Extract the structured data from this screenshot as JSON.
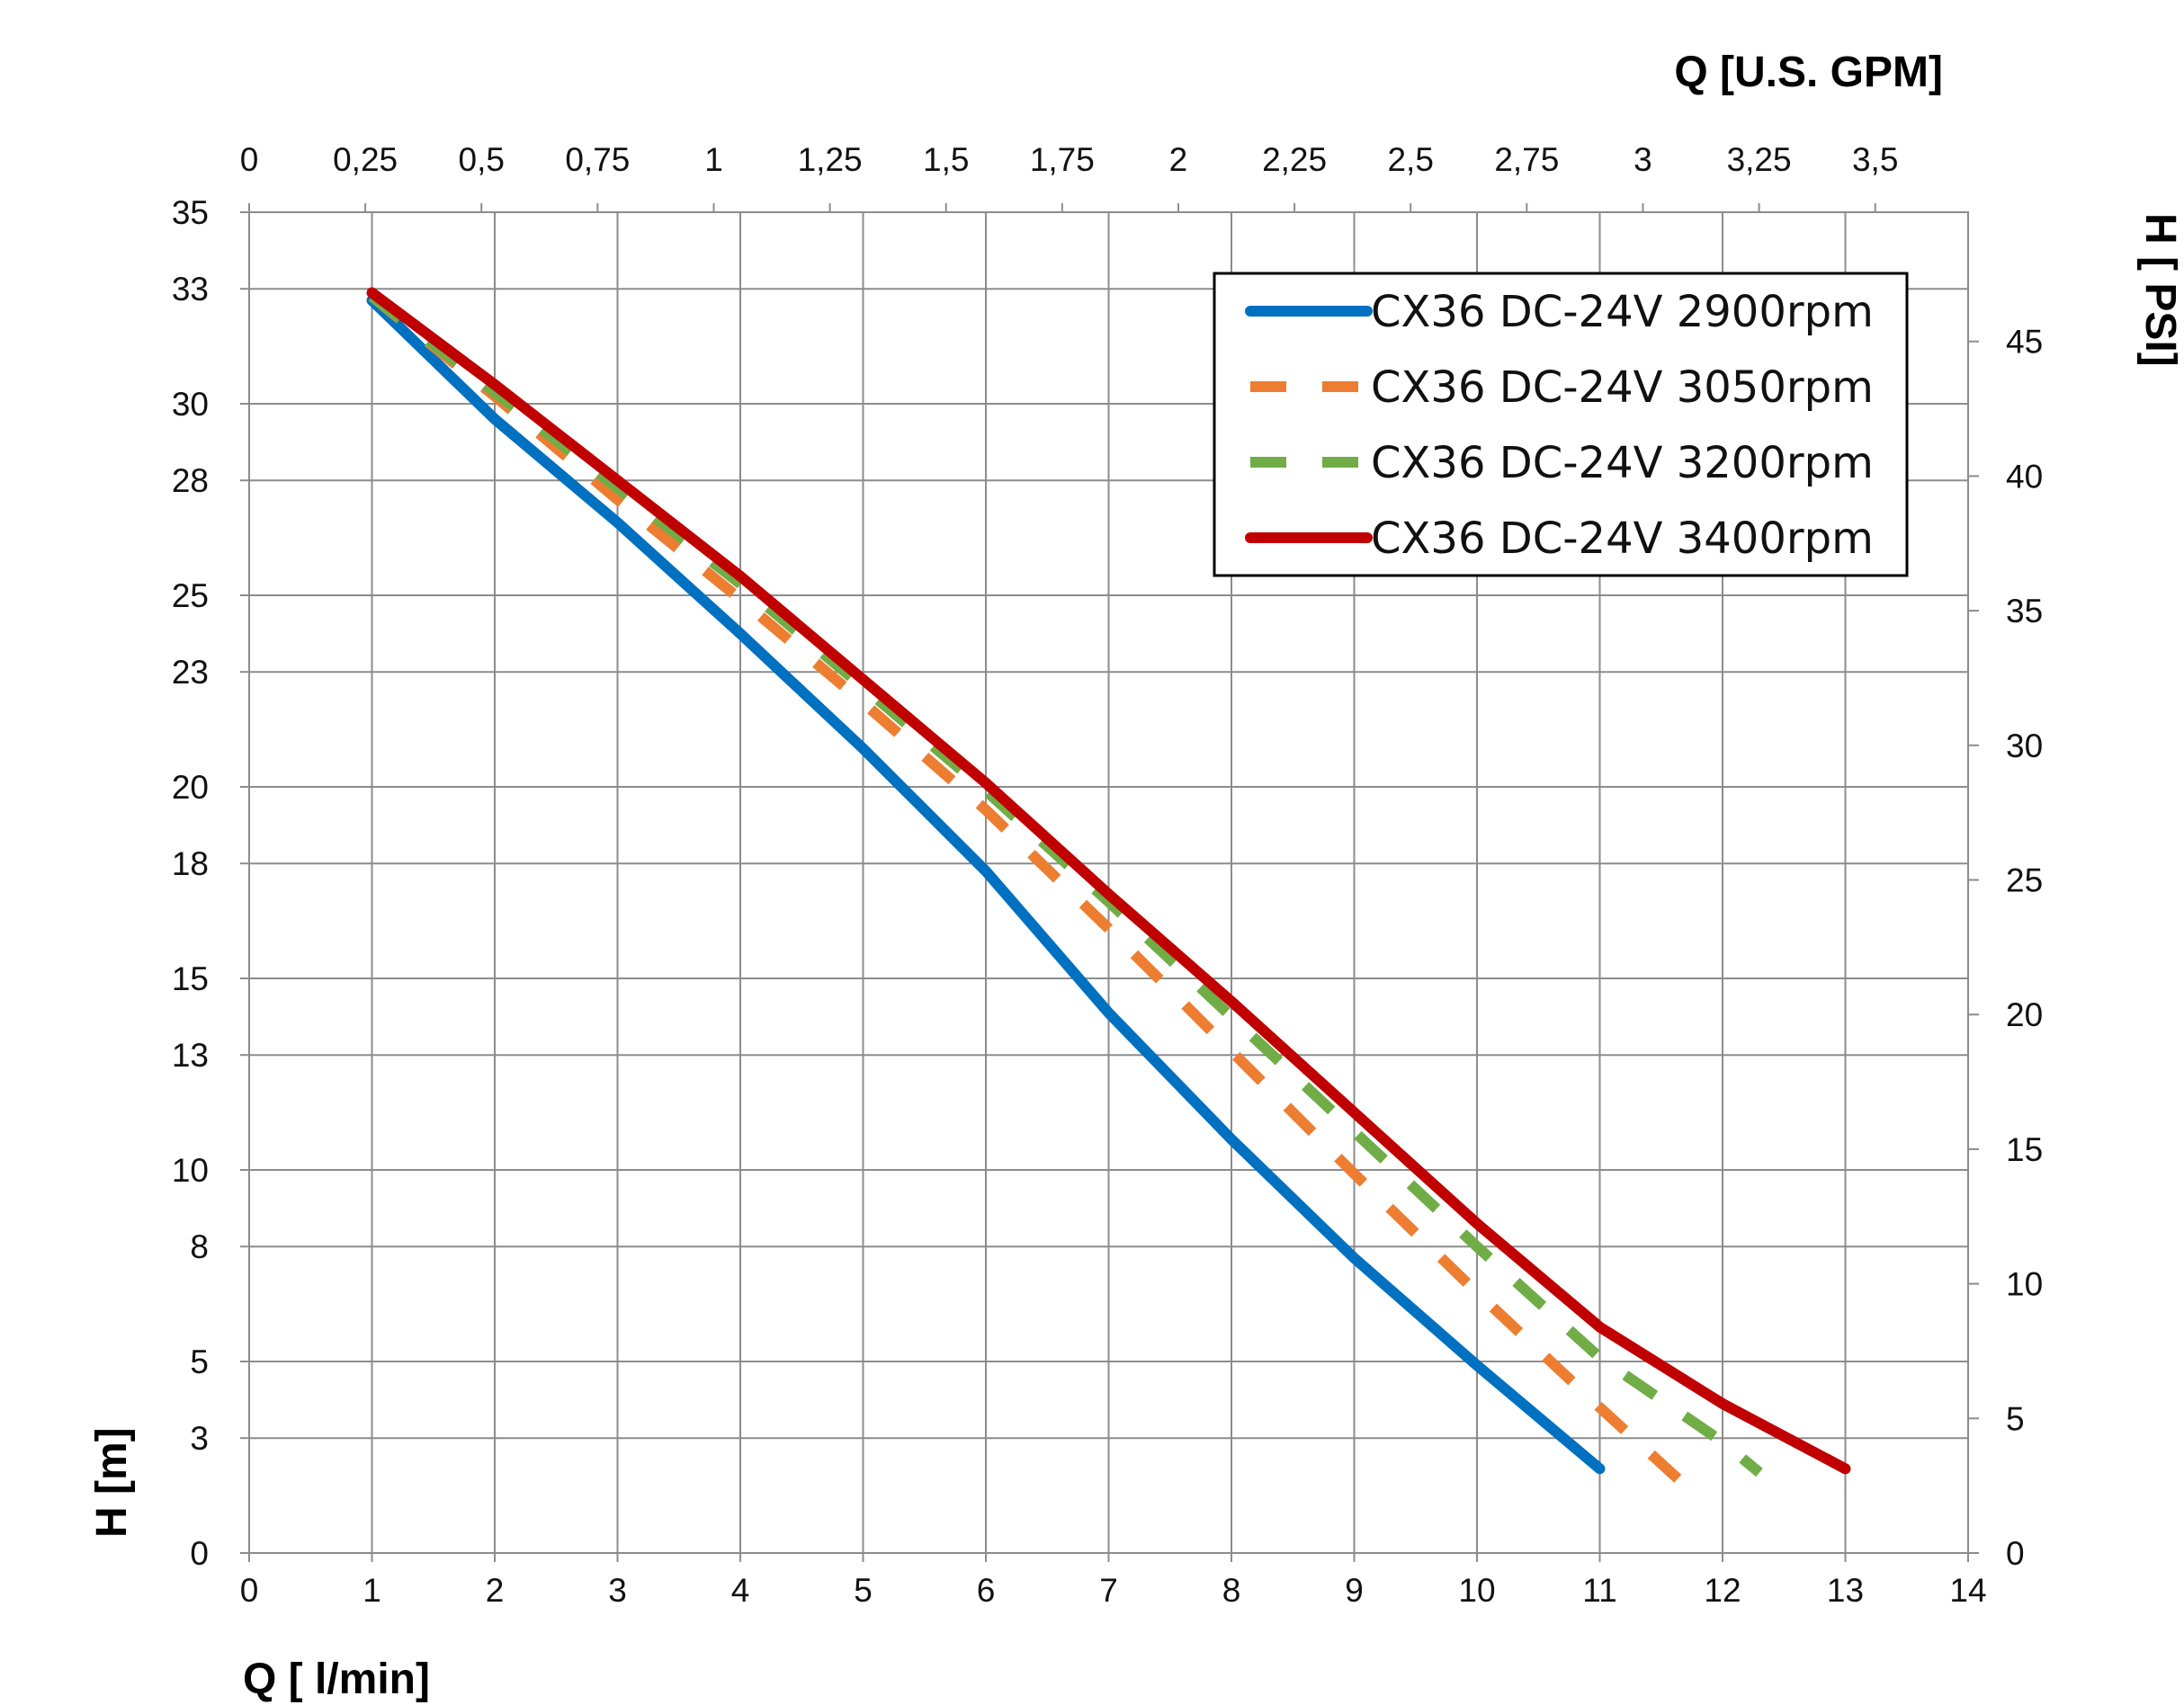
{
  "chart_data": {
    "type": "line",
    "xlabel": "Q [ l/min]",
    "ylabel": "H [m]",
    "x2label": "Q  [U.S. GPM]",
    "y2label": "H [ PSI]",
    "xlim": [
      0,
      14
    ],
    "ylim": [
      0,
      35
    ],
    "x2lim": [
      0,
      3.7
    ],
    "y2lim": [
      0,
      49.8
    ],
    "x_ticks": [
      "0",
      "1",
      "2",
      "3",
      "4",
      "5",
      "6",
      "7",
      "8",
      "9",
      "10",
      "11",
      "12",
      "13",
      "14"
    ],
    "y_ticks": [
      "0",
      "3",
      "5",
      "8",
      "10",
      "13",
      "15",
      "18",
      "20",
      "23",
      "25",
      "28",
      "30",
      "33",
      "35"
    ],
    "x2_ticks": [
      "0",
      "0,25",
      "0,5",
      "0,75",
      "1",
      "1,25",
      "1,5",
      "1,75",
      "2",
      "2,25",
      "2,5",
      "2,75",
      "3",
      "3,25",
      "3,5"
    ],
    "y2_ticks": [
      "0",
      "5",
      "10",
      "15",
      "20",
      "25",
      "30",
      "35",
      "40",
      "45"
    ],
    "grid": true,
    "legend_position": "top-right",
    "series": [
      {
        "name": "CX36 DC-24V 2900rpm",
        "color": "#0070c0",
        "dash": "solid",
        "x": [
          1,
          2,
          3,
          4,
          5,
          6,
          7,
          8,
          9,
          10,
          11
        ],
        "y": [
          32.7,
          29.6,
          26.9,
          24.0,
          21.0,
          17.8,
          14.1,
          10.8,
          7.7,
          4.9,
          2.2
        ]
      },
      {
        "name": "CX36 DC-24V 3050rpm",
        "color": "#ed7d31",
        "dash": "dashed",
        "x": [
          1,
          2,
          3,
          4,
          5,
          6,
          7,
          8,
          9,
          10,
          11,
          11.65
        ],
        "y": [
          32.8,
          30.2,
          27.5,
          24.9,
          22.2,
          19.4,
          16.3,
          13.1,
          9.9,
          6.8,
          3.8,
          1.9
        ]
      },
      {
        "name": "CX36 DC-24V 3200rpm",
        "color": "#70ad47",
        "dash": "dashed",
        "x": [
          1,
          2,
          3,
          4,
          5,
          6,
          7,
          8,
          9,
          10,
          11,
          12,
          12.3
        ],
        "y": [
          32.8,
          30.3,
          27.8,
          25.3,
          22.6,
          19.9,
          17.0,
          14.0,
          11.0,
          8.0,
          5.1,
          2.9,
          2.1
        ]
      },
      {
        "name": "CX36 DC-24V 3400rpm",
        "color": "#c00000",
        "dash": "solid",
        "x": [
          1,
          2,
          3,
          4,
          5,
          6,
          7,
          8,
          9,
          10,
          11,
          12,
          13
        ],
        "y": [
          32.9,
          30.5,
          28.0,
          25.5,
          22.8,
          20.1,
          17.2,
          14.4,
          11.5,
          8.6,
          5.9,
          3.9,
          2.2
        ]
      }
    ]
  }
}
